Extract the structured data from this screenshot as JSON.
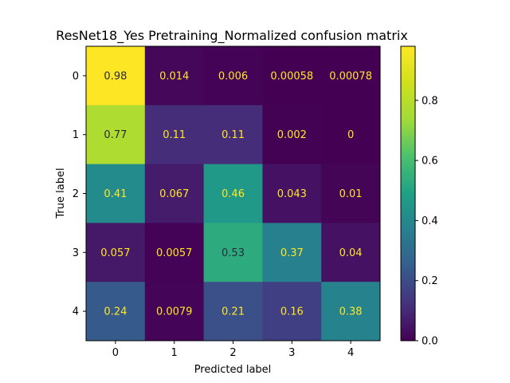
{
  "chart_data": {
    "type": "heatmap",
    "title": "ResNet18_Yes Pretraining_Normalized confusion matrix",
    "xlabel": "Predicted label",
    "ylabel": "True label",
    "x_categories": [
      "0",
      "1",
      "2",
      "3",
      "4"
    ],
    "y_categories": [
      "0",
      "1",
      "2",
      "3",
      "4"
    ],
    "values": [
      [
        0.98,
        0.014,
        0.006,
        0.00058,
        0.00078
      ],
      [
        0.77,
        0.11,
        0.11,
        0.002,
        0
      ],
      [
        0.41,
        0.067,
        0.46,
        0.043,
        0.01
      ],
      [
        0.057,
        0.0057,
        0.53,
        0.37,
        0.04
      ],
      [
        0.24,
        0.0079,
        0.21,
        0.16,
        0.38
      ]
    ],
    "value_labels": [
      [
        "0.98",
        "0.014",
        "0.006",
        "0.00058",
        "0.00078"
      ],
      [
        "0.77",
        "0.11",
        "0.11",
        "0.002",
        "0"
      ],
      [
        "0.41",
        "0.067",
        "0.46",
        "0.043",
        "0.01"
      ],
      [
        "0.057",
        "0.0057",
        "0.53",
        "0.37",
        "0.04"
      ],
      [
        "0.24",
        "0.0079",
        "0.21",
        "0.16",
        "0.38"
      ]
    ],
    "colormap": "viridis",
    "color_range": [
      0,
      0.98
    ],
    "colorbar_ticks": [
      0.0,
      0.2,
      0.4,
      0.6,
      0.8
    ],
    "colorbar_tick_labels": [
      "0.0",
      "0.2",
      "0.4",
      "0.6",
      "0.8"
    ],
    "text_color_light": "#fde725",
    "text_color_dark": "#2a2a3a",
    "grid": false
  }
}
